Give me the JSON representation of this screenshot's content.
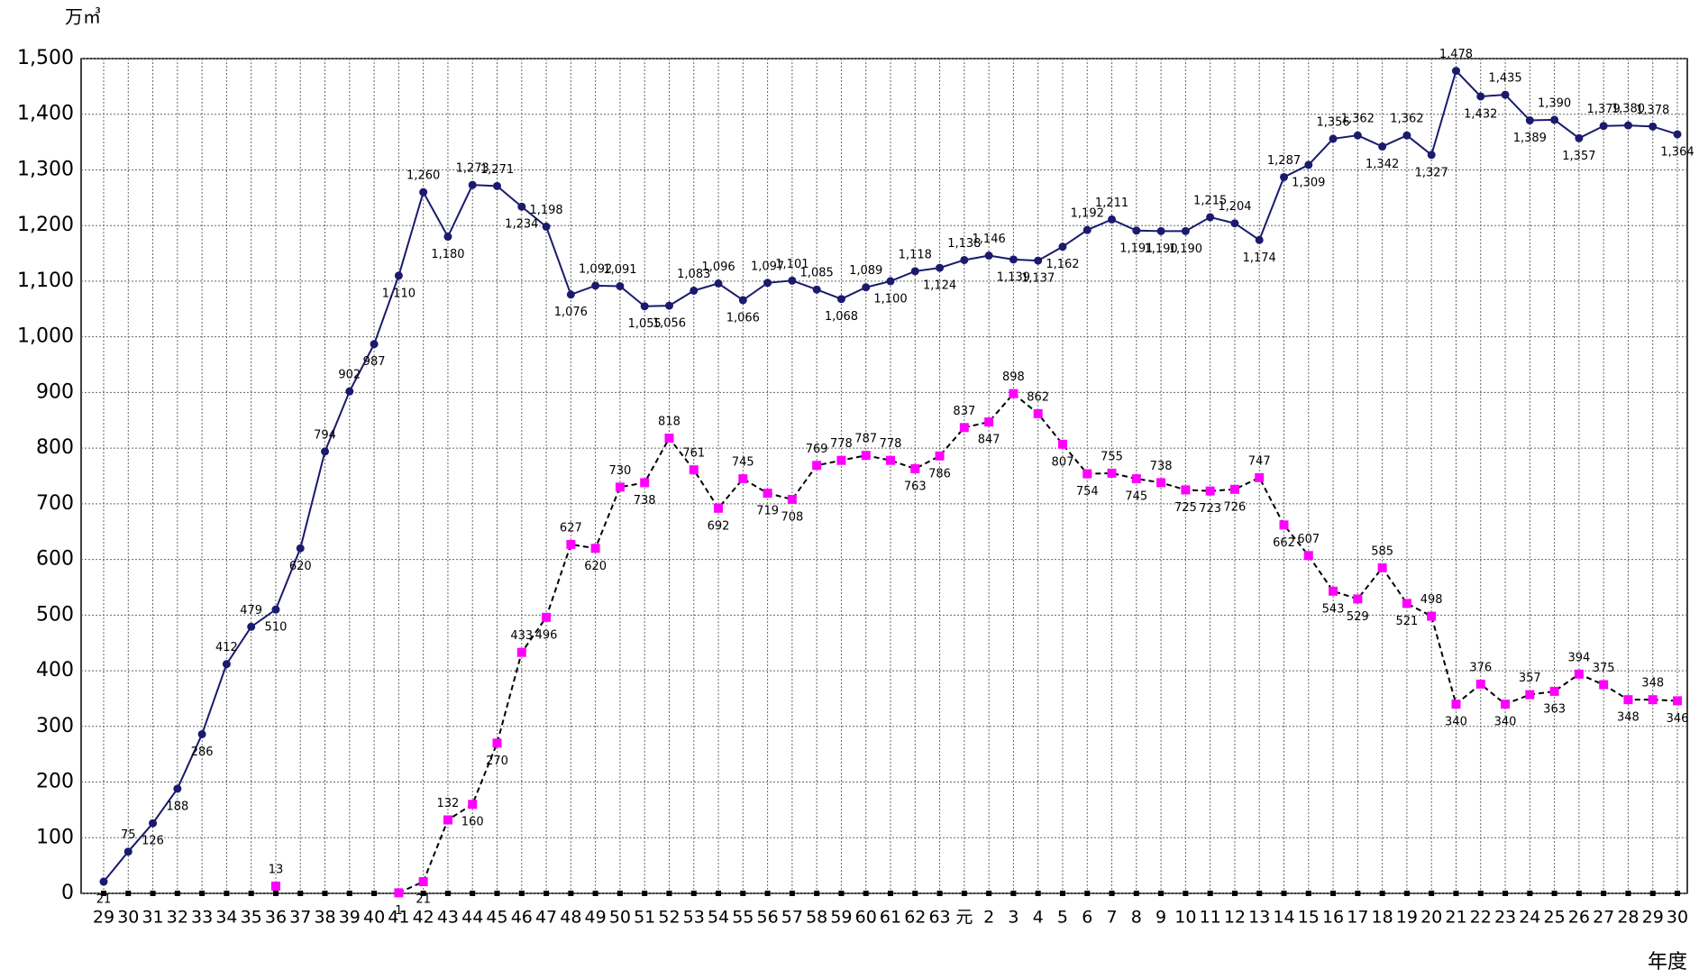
{
  "chart_data": {
    "type": "line",
    "y_unit": "万㎥",
    "x_label": "年度",
    "categories": [
      "29",
      "30",
      "31",
      "32",
      "33",
      "34",
      "35",
      "36",
      "37",
      "38",
      "39",
      "40",
      "41",
      "42",
      "43",
      "44",
      "45",
      "46",
      "47",
      "48",
      "49",
      "50",
      "51",
      "52",
      "53",
      "54",
      "55",
      "56",
      "57",
      "58",
      "59",
      "60",
      "61",
      "62",
      "63",
      "元",
      "2",
      "3",
      "4",
      "5",
      "6",
      "7",
      "8",
      "9",
      "10",
      "11",
      "12",
      "13",
      "14",
      "15",
      "16",
      "17",
      "18",
      "19",
      "20",
      "21",
      "22",
      "23",
      "24",
      "25",
      "26",
      "27",
      "28",
      "29",
      "30"
    ],
    "series": [
      {
        "color": "#1a1a6e",
        "line_color": "#1a1a6e",
        "line_style": "solid",
        "marker": "circle",
        "values": [
          21,
          75,
          126,
          188,
          286,
          412,
          479,
          510,
          620,
          794,
          902,
          987,
          1110,
          1260,
          1180,
          1273,
          1271,
          1234,
          1198,
          1076,
          1092,
          1091,
          1055,
          1056,
          1083,
          1096,
          1066,
          1097,
          1101,
          1085,
          1068,
          1089,
          1100,
          1118,
          1124,
          1138,
          1146,
          1139,
          1137,
          1162,
          1192,
          1211,
          1191,
          1190,
          1190,
          1215,
          1204,
          1174,
          1287,
          1309,
          1356,
          1362,
          1342,
          1362,
          1327,
          1478,
          1432,
          1435,
          1389,
          1390,
          1357,
          1379,
          1380,
          1378,
          1364
        ],
        "value_labels": [
          "21",
          "75",
          "126",
          "188",
          "286",
          "412",
          "479",
          "510",
          "620",
          "794",
          "902",
          "987",
          "1,110",
          "1,260",
          "1,180",
          "1,273",
          "1,271",
          "1,234",
          "1,198",
          "1,076",
          "1,092",
          "1,091",
          "1,055",
          "1,056",
          "1,083",
          "1,096",
          "1,066",
          "1,097",
          "1,101",
          "1,085",
          "1,068",
          "1,089",
          "1,100",
          "1,118",
          "1,124",
          "1,138",
          "1,146",
          "1,139",
          "1,137",
          "1,162",
          "1,192",
          "1,211",
          "1,191",
          "1,190",
          "1,190",
          "1,215",
          "1,204",
          "1,174",
          "1,287",
          "1,309",
          "1,356",
          "1,362",
          "1,342",
          "1,362",
          "1,327",
          "1,478",
          "1,432",
          "1,435",
          "1,389",
          "1,390",
          "1,357",
          "1,379",
          "1,380",
          "1,378",
          "1,364"
        ]
      },
      {
        "color": "#ff00ff",
        "line_color": "#000000",
        "line_style": "dashed",
        "marker": "square",
        "values": [
          null,
          null,
          null,
          null,
          null,
          null,
          null,
          13,
          null,
          null,
          null,
          null,
          1,
          21,
          132,
          160,
          270,
          433,
          496,
          627,
          620,
          730,
          738,
          818,
          761,
          692,
          745,
          719,
          708,
          769,
          778,
          787,
          778,
          763,
          786,
          837,
          847,
          898,
          862,
          807,
          754,
          755,
          745,
          738,
          725,
          723,
          726,
          747,
          662,
          607,
          543,
          529,
          585,
          521,
          498,
          340,
          376,
          340,
          357,
          363,
          394,
          375,
          348,
          348,
          346
        ]
      }
    ],
    "ylim": [
      0,
      1500
    ],
    "yticks": [
      0,
      100,
      200,
      300,
      400,
      500,
      600,
      700,
      800,
      900,
      {
        "value": 1000,
        "label": "1,000"
      },
      {
        "value": 1100,
        "label": "1,100"
      },
      {
        "value": 1200,
        "label": "1,200"
      },
      {
        "value": 1300,
        "label": "1,300"
      },
      {
        "value": 1400,
        "label": "1,400"
      },
      {
        "value": 1500,
        "label": "1,500"
      }
    ],
    "grid": true
  }
}
